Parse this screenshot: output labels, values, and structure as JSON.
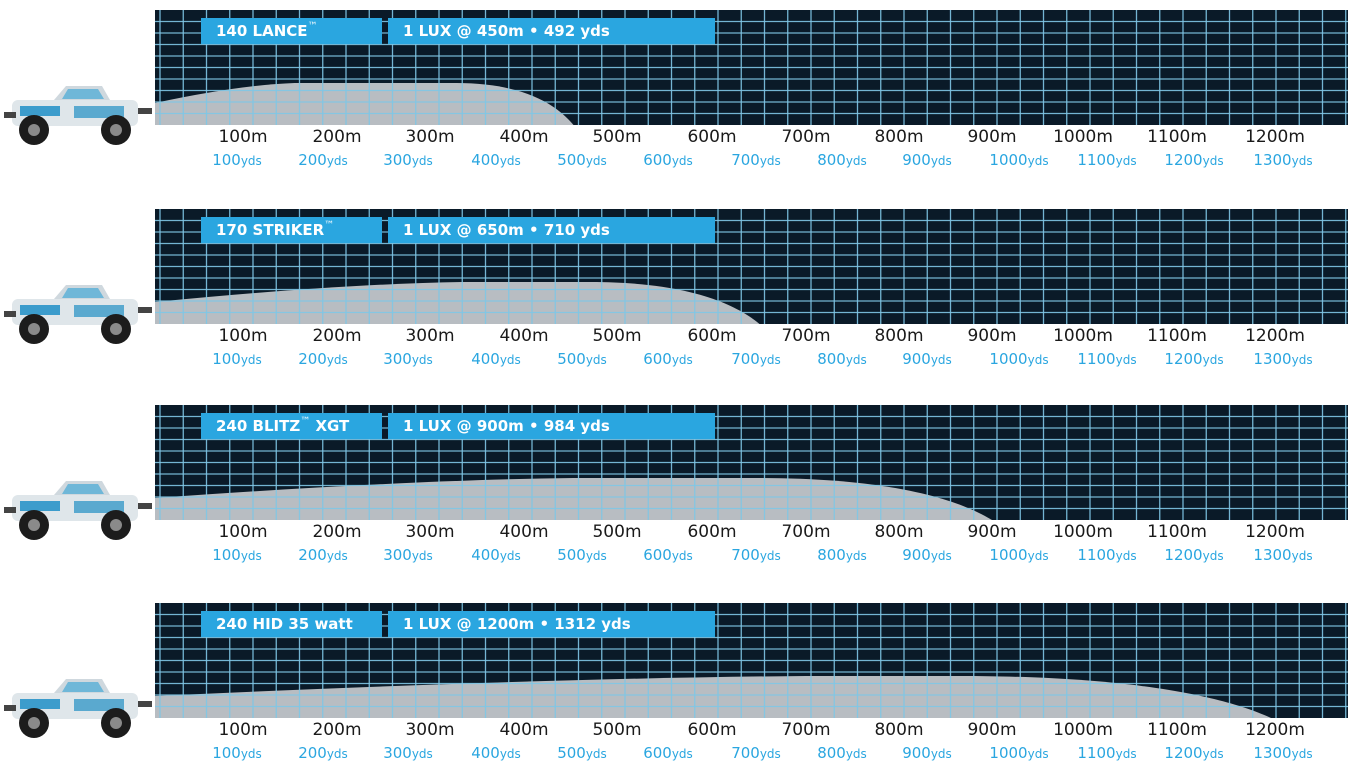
{
  "colors": {
    "panel": "#0a1a28",
    "grid": "#7fc6e6",
    "beam": "#b8bdc2",
    "tag": "#2aa6e0",
    "yds": "#2aa6e0"
  },
  "truck_icon": "offroad-truck-icon",
  "meter_ticks": [
    "100m",
    "200m",
    "300m",
    "400m",
    "500m",
    "600m",
    "700m",
    "800m",
    "900m",
    "1000m",
    "1100m",
    "1200m"
  ],
  "yard_ticks": [
    {
      "num": "100",
      "unit": "yds"
    },
    {
      "num": "200",
      "unit": "yds"
    },
    {
      "num": "300",
      "unit": "yds"
    },
    {
      "num": "400",
      "unit": "yds"
    },
    {
      "num": "500",
      "unit": "yds"
    },
    {
      "num": "600",
      "unit": "yds"
    },
    {
      "num": "700",
      "unit": "yds"
    },
    {
      "num": "800",
      "unit": "yds"
    },
    {
      "num": "900",
      "unit": "yds"
    },
    {
      "num": "1000",
      "unit": "yds"
    },
    {
      "num": "1100",
      "unit": "yds"
    },
    {
      "num": "1200",
      "unit": "yds"
    },
    {
      "num": "1300",
      "unit": "yds"
    }
  ],
  "chart_data": [
    {
      "type": "area",
      "name": "140 LANCE",
      "tm": "™",
      "suffix": "",
      "lux_label": "1 LUX @ 450m • 492 yds",
      "x_unit": "m",
      "reach_m": 450,
      "peak_m": 150,
      "xlim": [
        0,
        1260
      ],
      "grid": true
    },
    {
      "type": "area",
      "name": "170 STRIKER",
      "tm": "™",
      "suffix": "",
      "lux_label": "1 LUX @ 650m • 710 yds",
      "x_unit": "m",
      "reach_m": 650,
      "peak_m": 330,
      "xlim": [
        0,
        1260
      ],
      "grid": true
    },
    {
      "type": "area",
      "name": "240 BLITZ",
      "tm": "™",
      "suffix": " XGT",
      "lux_label": "1 LUX @ 900m • 984 yds",
      "x_unit": "m",
      "reach_m": 900,
      "peak_m": 450,
      "xlim": [
        0,
        1260
      ],
      "grid": true
    },
    {
      "type": "area",
      "name": "240 HID 35 watt",
      "tm": "",
      "suffix": "",
      "lux_label": "1 LUX @ 1200m • 1312 yds",
      "x_unit": "m",
      "reach_m": 1200,
      "peak_m": 700,
      "xlim": [
        0,
        1260
      ],
      "grid": true
    }
  ]
}
